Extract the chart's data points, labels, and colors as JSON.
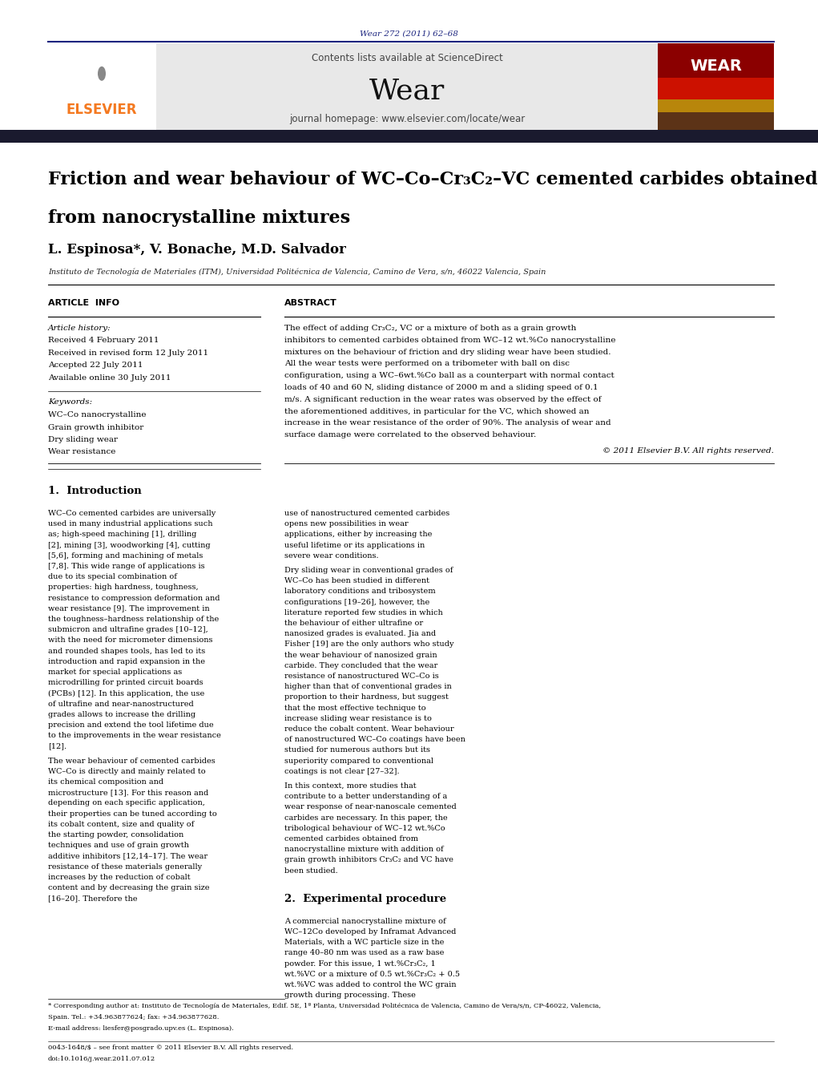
{
  "page_width": 10.21,
  "page_height": 13.51,
  "bg_color": "#ffffff",
  "journal_ref": "Wear 272 (2011) 62–68",
  "journal_ref_color": "#1a237e",
  "header_bg": "#e8e8e8",
  "contents_text": "Contents lists available at ScienceDirect",
  "journal_name": "Wear",
  "journal_homepage": "journal homepage: www.elsevier.com/locate/wear",
  "article_title_line1": "Friction and wear behaviour of WC–Co–Cr₃C₂–VC cemented carbides obtained",
  "article_title_line2": "from nanocrystalline mixtures",
  "authors": "L. Espinosa*, V. Bonache, M.D. Salvador",
  "affiliation": "Instituto de Tecnología de Materiales (ITM), Universidad Politécnica de Valencia, Camino de Vera, s/n, 46022 Valencia, Spain",
  "section_article_info": "ARTICLE  INFO",
  "section_abstract": "ABSTRACT",
  "article_history_label": "Article history:",
  "article_history": [
    "Received 4 February 2011",
    "Received in revised form 12 July 2011",
    "Accepted 22 July 2011",
    "Available online 30 July 2011"
  ],
  "keywords_label": "Keywords:",
  "keywords": [
    "WC–Co nanocrystalline",
    "Grain growth inhibitor",
    "Dry sliding wear",
    "Wear resistance"
  ],
  "abstract_text": "The effect of adding Cr₃C₂, VC or a mixture of both as a grain growth inhibitors to cemented carbides obtained from WC–12 wt.%Co nanocrystalline mixtures on the behaviour of friction and dry sliding wear have been studied. All the wear tests were performed on a tribometer with ball on disc configuration, using a WC–6wt.%Co ball as a counterpart with normal contact loads of 40 and 60 N, sliding distance of 2000 m and a sliding speed of 0.1 m/s. A significant reduction in the wear rates was observed by the effect of the aforementioned additives, in particular for the VC, which showed an increase in the wear resistance of the order of 90%. The analysis of wear and surface damage were correlated to the observed behaviour.",
  "copyright": "© 2011 Elsevier B.V. All rights reserved.",
  "section1_title": "1.  Introduction",
  "intro_p1": "WC–Co cemented carbides are universally used in many industrial applications such as; high-speed machining [1], drilling [2], mining [3], woodworking [4], cutting [5,6], forming and machining of metals [7,8]. This wide range of applications is due to its special combination of properties: high hardness, toughness, resistance to compression deformation and wear resistance [9]. The improvement in the toughness–hardness relationship of the submicron and ultrafine grades [10–12], with the need for micrometer dimensions and rounded shapes tools, has led to its introduction and rapid expansion in the market for special applications as microdrilling for printed circuit boards (PCBs) [12]. In this application, the use of ultrafine and near-nanostructured grades allows to increase the drilling precision and extend the tool lifetime due to the improvements in the wear resistance [12].",
  "intro_p2": "    The wear behaviour of cemented carbides WC–Co is directly and mainly related to its chemical composition and microstructure [13]. For this reason and depending on each specific application, their properties can be tuned according to its cobalt content, size and quality of the starting powder, consolidation techniques and use of grain growth additive inhibitors [12,14–17]. The wear resistance of these materials generally increases by the reduction of cobalt content and by decreasing the grain size [16–20]. Therefore the",
  "intro_r1": "use of nanostructured cemented carbides opens new possibilities in wear applications, either by increasing the useful lifetime or its applications in severe wear conditions.",
  "intro_r2": "    Dry sliding wear in conventional grades of WC–Co has been studied in different laboratory conditions and tribosystem configurations [19–26], however, the literature reported few studies in which the behaviour of either ultrafine or nanosized grades is evaluated. Jia and Fisher [19] are the only authors who study the wear behaviour of nanosized grain carbide. They concluded that the wear resistance of nanostructured WC–Co is higher than that of conventional grades in proportion to their hardness, but suggest that the most effective technique to increase sliding wear resistance is to reduce the cobalt content. Wear behaviour of nanostructured WC–Co coatings have been studied for numerous authors but its superiority compared to conventional coatings is not clear [27–32].",
  "intro_r3": "    In this context, more studies that contribute to a better understanding of a wear response of near-nanoscale cemented carbides are necessary. In this paper, the tribological behaviour of WC–12 wt.%Co cemented carbides obtained from nanocrystalline mixture with addition of grain growth inhibitors Cr₃C₂ and VC have been studied.",
  "section2_title": "2.  Experimental procedure",
  "exp_r1": "    A commercial nanocrystalline mixture of WC–12Co developed by Inframat Advanced Materials, with a WC particle size in the range 40–80 nm was used as a raw base powder. For this issue, 1 wt.%Cr₃C₂, 1 wt.%VC or a mixture of 0.5 wt.%Cr₃C₂ + 0.5 wt.%VC was added to control the WC grain growth during processing. These",
  "foot1": "* Corresponding author at: Instituto de Tecnología de Materiales, Edif. 5E, 1ª Planta, Universidad Politécnica de Valencia, Camino de Vera/s/n, CP-46022, Valencia,",
  "foot1b": "Spain. Tel.: +34.963877624; fax: +34.963877628.",
  "foot2": "E-mail address: liesfer@posgrado.upv.es (L. Espinosa).",
  "foot_issn": "0043-1648/$ – see front matter © 2011 Elsevier B.V. All rights reserved.",
  "foot_doi": "doi:10.1016/j.wear.2011.07.012",
  "elsevier_orange": "#f47920",
  "navy": "#1a237e",
  "blue_link": "#1565c0",
  "dark_bar": "#1a1a2e"
}
